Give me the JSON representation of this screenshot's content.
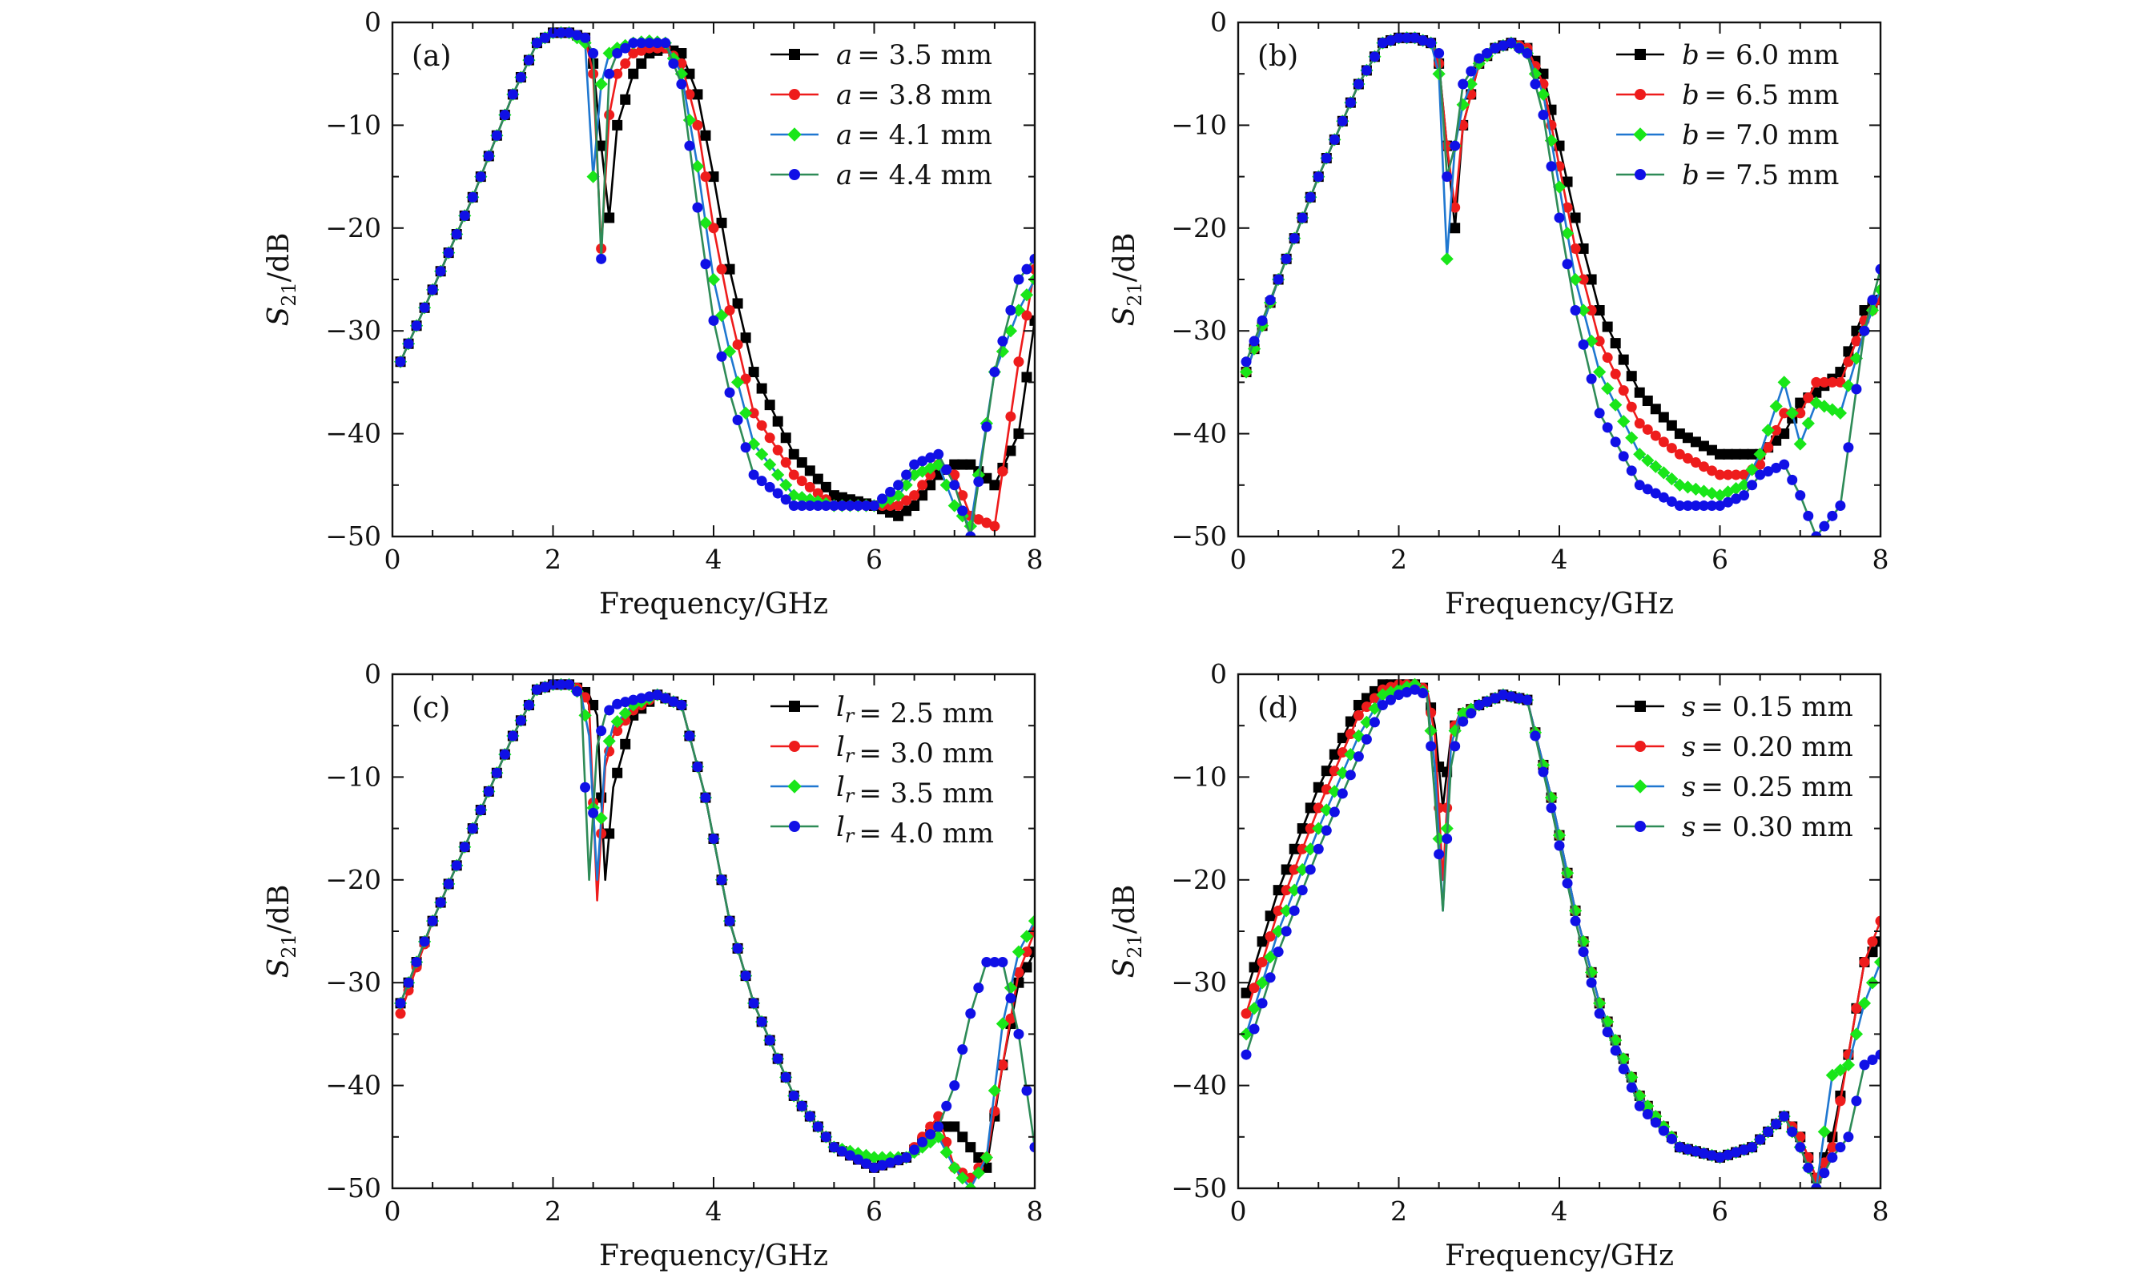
{
  "colors": {
    "black": "#000000",
    "red": "#ee1c1c",
    "blue_sq": "#1f77d0",
    "green": "#19e619",
    "blue": "#1010e6",
    "teal": "#2e8b57"
  },
  "common": {
    "xlabel": "Frequency/GHz",
    "ylabel": "S21/dB",
    "ylabel_main": "S",
    "ylabel_sub": "21",
    "ylabel_tail": "/dB",
    "xticks": [
      "0",
      "2",
      "4",
      "6",
      "8"
    ],
    "yticks": [
      "0",
      "−10",
      "−20",
      "−30",
      "−40",
      "−50"
    ],
    "xlim": [
      0,
      8
    ],
    "ylim": [
      -50,
      0
    ]
  },
  "chart_data": [
    {
      "type": "line",
      "panel": "(a)",
      "param_var": "a",
      "param_sub": "",
      "legend_labels": [
        "= 3.5 mm",
        "= 3.8 mm",
        "= 4.1 mm",
        "= 4.4 mm"
      ],
      "legend_position": "top-right",
      "xlabel": "Frequency/GHz",
      "ylabel": "S21/dB",
      "x": [
        0.1,
        0.5,
        1.0,
        1.5,
        1.8,
        2.0,
        2.2,
        2.4,
        2.5,
        2.6,
        2.7,
        2.8,
        3.0,
        3.2,
        3.4,
        3.6,
        3.8,
        4.0,
        4.2,
        4.5,
        5.0,
        5.5,
        6.0,
        6.3,
        6.5,
        6.8,
        7.0,
        7.2,
        7.5,
        7.8,
        8.0
      ],
      "series": [
        {
          "name": "a = 3.5 mm",
          "marker": "square",
          "fill": "black",
          "line": "black",
          "values": [
            -33,
            -26,
            -17,
            -7,
            -2,
            -1,
            -1,
            -1.5,
            -4,
            -12,
            -19,
            -10,
            -5,
            -3,
            -2.5,
            -3,
            -7,
            -15,
            -24,
            -34,
            -42,
            -46,
            -47,
            -48,
            -47,
            -44,
            -43,
            -43,
            -45,
            -40,
            -29
          ]
        },
        {
          "name": "a = 3.8 mm",
          "marker": "circle",
          "fill": "red",
          "line": "red",
          "values": [
            -33,
            -26,
            -17,
            -7,
            -2,
            -1,
            -1,
            -1.5,
            -5,
            -22,
            -9,
            -5,
            -3,
            -2.5,
            -2.5,
            -4,
            -10,
            -20,
            -28,
            -38,
            -44,
            -47,
            -47,
            -47,
            -46,
            -43,
            -44,
            -48,
            -49,
            -33,
            -24
          ]
        },
        {
          "name": "a = 4.1 mm",
          "marker": "diamond",
          "fill": "green",
          "line": "blue_sq",
          "values": [
            -33,
            -26,
            -17,
            -7,
            -2,
            -1,
            -1,
            -2,
            -15,
            -6,
            -3,
            -2.5,
            -2,
            -1.8,
            -2,
            -5,
            -14,
            -25,
            -32,
            -41,
            -46,
            -47,
            -47,
            -46,
            -44,
            -43,
            -47,
            -49,
            -34,
            -28,
            -25
          ]
        },
        {
          "name": "a = 4.4 mm",
          "marker": "circle",
          "fill": "blue",
          "line": "teal",
          "values": [
            -33,
            -26,
            -17,
            -7,
            -2,
            -1,
            -1,
            -1.5,
            -3,
            -23,
            -5,
            -3,
            -2,
            -2,
            -2,
            -6,
            -18,
            -29,
            -36,
            -44,
            -47,
            -47,
            -47,
            -45,
            -43,
            -42,
            -45,
            -50,
            -34,
            -25,
            -23
          ]
        }
      ]
    },
    {
      "type": "line",
      "panel": "(b)",
      "param_var": "b",
      "param_sub": "",
      "legend_labels": [
        "= 6.0 mm",
        "= 6.5 mm",
        "= 7.0 mm",
        "= 7.5 mm"
      ],
      "legend_position": "top-right",
      "xlabel": "Frequency/GHz",
      "ylabel": "S21/dB",
      "x": [
        0.1,
        0.5,
        1.0,
        1.5,
        1.8,
        2.0,
        2.2,
        2.4,
        2.5,
        2.6,
        2.7,
        2.8,
        3.0,
        3.2,
        3.4,
        3.6,
        3.8,
        4.0,
        4.2,
        4.5,
        5.0,
        5.5,
        6.0,
        6.3,
        6.5,
        6.8,
        7.0,
        7.2,
        7.5,
        7.8,
        8.0
      ],
      "series": [
        {
          "name": "b = 6.0 mm",
          "marker": "square",
          "fill": "black",
          "line": "black",
          "values": [
            -34,
            -25,
            -15,
            -6,
            -2,
            -1.5,
            -1.5,
            -2,
            -4,
            -12,
            -20,
            -10,
            -4,
            -2.5,
            -2,
            -2.5,
            -5,
            -12,
            -19,
            -28,
            -36,
            -40,
            -42,
            -42,
            -42,
            -40,
            -37,
            -36,
            -34,
            -28,
            -27
          ]
        },
        {
          "name": "b = 6.5 mm",
          "marker": "circle",
          "fill": "red",
          "line": "red",
          "values": [
            -34,
            -25,
            -15,
            -6,
            -2,
            -1.5,
            -1.5,
            -2,
            -4,
            -12,
            -18,
            -10,
            -4,
            -2.5,
            -2,
            -2.5,
            -6,
            -14,
            -22,
            -31,
            -39,
            -42,
            -44,
            -44,
            -43,
            -38,
            -38,
            -35,
            -35,
            -29,
            -27
          ]
        },
        {
          "name": "b = 7.0 mm",
          "marker": "diamond",
          "fill": "green",
          "line": "blue_sq",
          "values": [
            -34,
            -25,
            -15,
            -6,
            -2,
            -1.5,
            -1.5,
            -2,
            -5,
            -23,
            -12,
            -8,
            -4,
            -2.5,
            -2,
            -3,
            -7,
            -16,
            -25,
            -34,
            -42,
            -45,
            -46,
            -45,
            -42,
            -35,
            -41,
            -37,
            -38,
            -30,
            -26
          ]
        },
        {
          "name": "b = 7.5 mm",
          "marker": "circle",
          "fill": "blue",
          "line": "teal",
          "values": [
            -33,
            -25,
            -15,
            -6,
            -2,
            -1.5,
            -1.5,
            -2,
            -3,
            -15,
            -12,
            -6,
            -3.5,
            -2.5,
            -2,
            -3,
            -9,
            -19,
            -28,
            -38,
            -45,
            -47,
            -47,
            -46,
            -44,
            -43,
            -46,
            -50,
            -47,
            -30,
            -24
          ]
        }
      ]
    },
    {
      "type": "line",
      "panel": "(c)",
      "param_var": "l",
      "param_sub": "r",
      "legend_labels": [
        "= 2.5 mm",
        "= 3.0 mm",
        "= 3.5 mm",
        "= 4.0 mm"
      ],
      "legend_position": "top-right",
      "xlabel": "Frequency/GHz",
      "ylabel": "S21/dB",
      "x": [
        0.1,
        0.5,
        1.0,
        1.5,
        1.8,
        2.0,
        2.2,
        2.35,
        2.45,
        2.55,
        2.65,
        2.75,
        3.0,
        3.3,
        3.6,
        3.9,
        4.2,
        4.5,
        5.0,
        5.5,
        6.0,
        6.4,
        6.8,
        7.0,
        7.2,
        7.4,
        7.6,
        7.8,
        8.0
      ],
      "series": [
        {
          "name": "l_r = 2.5 mm",
          "marker": "square",
          "fill": "black",
          "line": "black",
          "values": [
            -32,
            -24,
            -15,
            -6,
            -1.5,
            -1,
            -1,
            -1.5,
            -2,
            -4,
            -20,
            -11,
            -4,
            -2,
            -3,
            -12,
            -24,
            -32,
            -41,
            -46,
            -48,
            -47,
            -44,
            -44,
            -46,
            -48,
            -38,
            -30,
            -27
          ]
        },
        {
          "name": "l_r = 3.0 mm",
          "marker": "circle",
          "fill": "red",
          "line": "red",
          "values": [
            -33,
            -24,
            -15,
            -6,
            -1.5,
            -1,
            -1,
            -1.5,
            -3,
            -22,
            -9,
            -6,
            -3.5,
            -2,
            -3,
            -12,
            -24,
            -32,
            -41,
            -46,
            -48,
            -47,
            -43,
            -48,
            -49,
            -47,
            -38,
            -29,
            -25
          ]
        },
        {
          "name": "l_r = 3.5 mm",
          "marker": "diamond",
          "fill": "green",
          "line": "blue_sq",
          "values": [
            -32,
            -24,
            -15,
            -6,
            -1.5,
            -1,
            -1,
            -2,
            -6,
            -20,
            -8,
            -5,
            -3,
            -2,
            -3,
            -12,
            -24,
            -32,
            -41,
            -46,
            -47,
            -47,
            -45,
            -48,
            -50,
            -47,
            -34,
            -27,
            -24
          ]
        },
        {
          "name": "l_r = 4.0 mm",
          "marker": "circle",
          "fill": "blue",
          "line": "teal",
          "values": [
            -32,
            -24,
            -15,
            -6,
            -1.5,
            -1,
            -1,
            -2,
            -20,
            -7,
            -4,
            -3,
            -2.5,
            -2,
            -3,
            -12,
            -24,
            -32,
            -41,
            -46,
            -48,
            -47,
            -44,
            -40,
            -33,
            -28,
            -28,
            -35,
            -46
          ]
        }
      ]
    },
    {
      "type": "line",
      "panel": "(d)",
      "param_var": "s",
      "param_sub": "",
      "legend_labels": [
        "= 0.15 mm",
        "= 0.20 mm",
        "= 0.25 mm",
        "= 0.30 mm"
      ],
      "legend_position": "top-right",
      "xlabel": "Frequency/GHz",
      "ylabel": "S21/dB",
      "x": [
        0.1,
        0.5,
        1.0,
        1.5,
        1.8,
        2.0,
        2.2,
        2.35,
        2.45,
        2.55,
        2.65,
        2.75,
        3.0,
        3.3,
        3.6,
        3.9,
        4.2,
        4.5,
        5.0,
        5.5,
        6.0,
        6.4,
        6.8,
        7.0,
        7.2,
        7.4,
        7.6,
        7.8,
        8.0
      ],
      "series": [
        {
          "name": "s = 0.15 mm",
          "marker": "square",
          "fill": "black",
          "line": "black",
          "values": [
            -31,
            -21,
            -11,
            -3,
            -1,
            -1,
            -1,
            -1.5,
            -5,
            -13,
            -6,
            -4,
            -3,
            -2,
            -2.5,
            -12,
            -23,
            -32,
            -41,
            -46,
            -47,
            -46,
            -43,
            -45,
            -49,
            -45,
            -37,
            -28,
            -26
          ]
        },
        {
          "name": "s = 0.20 mm",
          "marker": "circle",
          "fill": "red",
          "line": "red",
          "values": [
            -33,
            -23,
            -13,
            -4,
            -1.5,
            -1,
            -1,
            -1.5,
            -6,
            -20,
            -6,
            -4,
            -3,
            -2,
            -2.5,
            -12,
            -23,
            -32,
            -41,
            -46,
            -47,
            -46,
            -43,
            -45,
            -49,
            -46,
            -37,
            -28,
            -24
          ]
        },
        {
          "name": "s = 0.25 mm",
          "marker": "diamond",
          "fill": "green",
          "line": "blue_sq",
          "values": [
            -35,
            -25,
            -15,
            -6,
            -2,
            -1.5,
            -1,
            -2,
            -9,
            -23,
            -7,
            -4,
            -3,
            -2,
            -2.5,
            -12,
            -23,
            -32,
            -41,
            -46,
            -47,
            -46,
            -43,
            -46,
            -50,
            -39,
            -38,
            -32,
            -28
          ]
        },
        {
          "name": "s = 0.30 mm",
          "marker": "circle",
          "fill": "blue",
          "line": "teal",
          "values": [
            -37,
            -27,
            -17,
            -8,
            -3,
            -2,
            -1.5,
            -2,
            -12,
            -23,
            -9,
            -5,
            -3,
            -2,
            -2.5,
            -13,
            -24,
            -33,
            -42,
            -46,
            -47,
            -46,
            -43,
            -46,
            -50,
            -47,
            -45,
            -38,
            -37
          ]
        }
      ]
    }
  ]
}
